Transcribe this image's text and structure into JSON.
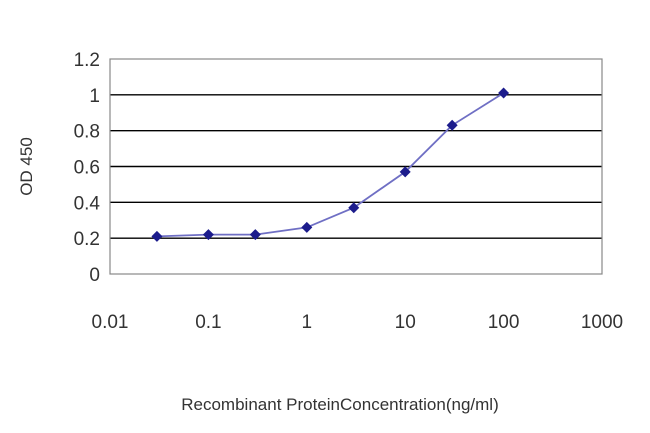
{
  "chart_data": {
    "type": "line",
    "title": "",
    "xlabel": "Recombinant ProteinConcentration(ng/ml)",
    "ylabel": "OD 450",
    "x_scale": "log",
    "xlim": [
      0.01,
      1000
    ],
    "ylim": [
      0,
      1.2
    ],
    "x_ticks": [
      0.01,
      0.1,
      1,
      10,
      100,
      1000
    ],
    "x_tick_labels": [
      "0.01",
      "0.1",
      "1",
      "10",
      "100",
      "1000"
    ],
    "y_ticks": [
      0,
      0.2,
      0.4,
      0.6,
      0.8,
      1,
      1.2
    ],
    "y_tick_labels": [
      "0",
      "0.2",
      "0.4",
      "0.6",
      "0.8",
      "1",
      "1.2"
    ],
    "grid": "horizontal",
    "legend": "none",
    "series": [
      {
        "x": [
          0.03,
          0.1,
          0.3,
          1,
          3,
          10,
          30,
          100
        ],
        "values": [
          0.21,
          0.22,
          0.22,
          0.26,
          0.37,
          0.57,
          0.83,
          1.01
        ]
      }
    ],
    "colors": {
      "line": "#6f6fc4",
      "marker": "#1c1c8c",
      "grid": "#000000",
      "frame": "#888888"
    }
  }
}
